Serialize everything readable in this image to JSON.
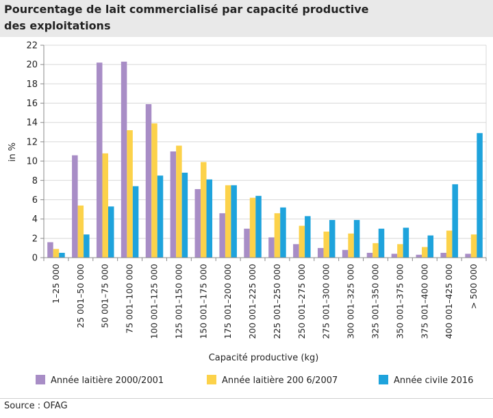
{
  "header": {
    "title_line1": "Pourcentage de lait commercialisé par capacité productive",
    "title_line2": "des exploitations"
  },
  "footer": {
    "source": "Source : OFAG"
  },
  "colors": {
    "s1": "#a88dc6",
    "s2": "#fcd24a",
    "s3": "#1ea3dc",
    "grid": "#d8d8d8",
    "axis": "#888888"
  },
  "chart_data": {
    "type": "bar",
    "xlabel": "Capacité productive (kg)",
    "ylabel": "in %",
    "ylim": [
      0,
      22
    ],
    "yticks": [
      0,
      2,
      4,
      6,
      8,
      10,
      12,
      14,
      16,
      18,
      20,
      22
    ],
    "legend_position": "bottom",
    "categories": [
      "1–25 000",
      "25 001–50 000",
      "50 001–75 000",
      "75 001–100 000",
      "100 001–125 000",
      "125 001–150 000",
      "150 001–175 000",
      "175 001–200 000",
      "200 001–225 000",
      "225 001–250 000",
      "250 001–275 000",
      "275 001–300 000",
      "300 001–325 000",
      "325 001–350 000",
      "350 001–375 000",
      "375 001–400 000",
      "400 001–425 000",
      "> 500 000"
    ],
    "series": [
      {
        "name": "Année laitière 2000/2001",
        "values": [
          1.6,
          10.6,
          20.2,
          20.3,
          15.9,
          11.0,
          7.1,
          4.6,
          3.0,
          2.1,
          1.4,
          1.0,
          0.8,
          0.5,
          0.4,
          0.3,
          0.5,
          0.4
        ]
      },
      {
        "name": "Année laitière 200 6/2007",
        "values": [
          0.9,
          5.4,
          10.8,
          13.2,
          13.9,
          11.6,
          9.9,
          7.5,
          6.2,
          4.6,
          3.3,
          2.7,
          2.5,
          1.5,
          1.4,
          1.1,
          2.8,
          2.4
        ]
      },
      {
        "name": "Année civile 2016",
        "values": [
          0.5,
          2.4,
          5.3,
          7.4,
          8.5,
          8.8,
          8.1,
          7.5,
          6.4,
          5.2,
          4.3,
          3.9,
          3.9,
          3.0,
          3.1,
          2.3,
          7.6,
          12.9
        ]
      }
    ]
  }
}
